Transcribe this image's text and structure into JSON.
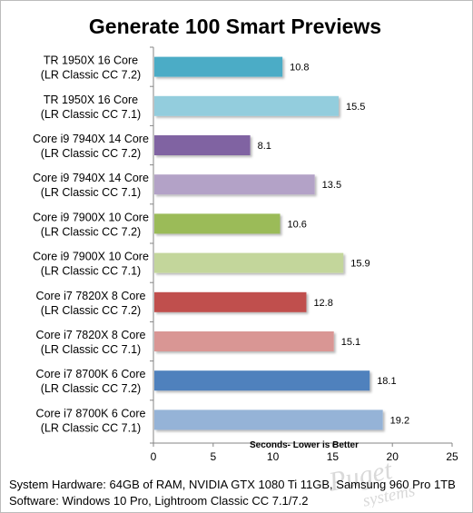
{
  "chart_data": {
    "type": "bar",
    "orientation": "horizontal",
    "title": "Generate 100 Smart Previews",
    "xlabel": "Seconds- Lower is Better",
    "ylabel": "",
    "xlim": [
      0,
      25
    ],
    "xticks": [
      0,
      5,
      10,
      15,
      20,
      25
    ],
    "grid": false,
    "legend": "none",
    "categories": [
      [
        "TR 1950X 16 Core",
        "(LR Classic CC 7.2)"
      ],
      [
        "TR 1950X 16 Core",
        "(LR Classic CC 7.1)"
      ],
      [
        "Core i9 7940X 14 Core",
        "(LR Classic CC 7.2)"
      ],
      [
        "Core i9 7940X 14 Core",
        "(LR Classic CC 7.1)"
      ],
      [
        "Core i9 7900X 10 Core",
        "(LR Classic CC 7.2)"
      ],
      [
        "Core i9 7900X 10 Core",
        "(LR Classic CC 7.1)"
      ],
      [
        "Core i7 7820X 8 Core",
        "(LR Classic CC 7.2)"
      ],
      [
        "Core i7 7820X 8 Core",
        "(LR Classic CC 7.1)"
      ],
      [
        "Core i7 8700K 6 Core",
        "(LR Classic CC 7.2)"
      ],
      [
        "Core i7 8700K 6 Core",
        "(LR Classic CC 7.1)"
      ]
    ],
    "values": [
      10.8,
      15.5,
      8.1,
      13.5,
      10.6,
      15.9,
      12.8,
      15.1,
      18.1,
      19.2
    ],
    "data_labels": [
      "10.8",
      "15.5",
      "8.1",
      "13.5",
      "10.6",
      "15.9",
      "12.8",
      "15.1",
      "18.1",
      "19.2"
    ],
    "colors": [
      "#4bacc6",
      "#93cddd",
      "#8064a2",
      "#b3a2c7",
      "#9bbb59",
      "#c3d69b",
      "#c0504d",
      "#d99694",
      "#4f81bd",
      "#95b3d7"
    ]
  },
  "footer": {
    "hardware": "System Hardware: 64GB of RAM, NVIDIA GTX 1080 Ti 11GB, Samsung 960 Pro 1TB",
    "software": "Software: Windows 10 Pro, Lightroom Classic CC 7.1/7.2"
  },
  "watermark": {
    "line1": "Puget",
    "line2": "systems"
  }
}
